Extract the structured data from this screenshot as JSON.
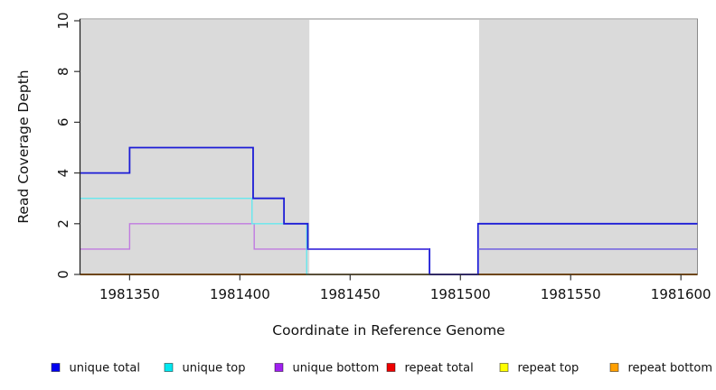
{
  "chart_data": {
    "type": "line",
    "subtype": "step-coverage",
    "title": "",
    "xlabel": "Coordinate in Reference Genome",
    "ylabel": "Read Coverage Depth",
    "xlim": [
      1981327.5,
      1981607.5
    ],
    "ylim": [
      0,
      10
    ],
    "x_ticks": [
      1981350,
      1981400,
      1981450,
      1981500,
      1981550,
      1981600
    ],
    "y_ticks": [
      0,
      2,
      4,
      6,
      8,
      10
    ],
    "grid": false,
    "background": "#FFFFFF",
    "shaded_regions": {
      "fill": "#DADADA",
      "note": "gray repeat-region bands behind the curves",
      "intervals": [
        [
          1981327.5,
          1981431.5
        ],
        [
          1981508.5,
          1981607.5
        ]
      ]
    },
    "series": [
      {
        "name": "repeat top",
        "color": "#FFFF00",
        "width": 1.4,
        "segments": [
          [
            [
              1981327.5,
              0
            ],
            [
              1981607.5,
              0
            ]
          ]
        ]
      },
      {
        "name": "repeat total",
        "color": "#E00000",
        "width": 1.4,
        "segments": [
          [
            [
              1981327.5,
              0
            ],
            [
              1981607.5,
              0
            ]
          ]
        ]
      },
      {
        "name": "repeat bottom",
        "color": "#FF9800",
        "width": 1.8,
        "segments": [
          [
            [
              1981327.5,
              0
            ],
            [
              1981431.5,
              0
            ]
          ],
          [
            [
              1981508.5,
              0
            ],
            [
              1981607.5,
              0
            ]
          ]
        ]
      },
      {
        "name": "unique bottom",
        "color": "#C07BE0",
        "width": 1.4,
        "segments": [
          [
            [
              1981327.5,
              1
            ],
            [
              1981350,
              2
            ],
            [
              1981406.5,
              1
            ],
            [
              1981486,
              0
            ],
            [
              1981508,
              1
            ],
            [
              1981607.5,
              1
            ]
          ]
        ]
      },
      {
        "name": "unique top",
        "color": "#66E8EE",
        "width": 1.4,
        "segments": [
          [
            [
              1981327.5,
              3
            ],
            [
              1981405.5,
              2
            ],
            [
              1981430.3,
              0
            ],
            [
              1981431.5,
              0
            ]
          ]
        ]
      },
      {
        "name": "unique total",
        "color": "#1C1CD6",
        "width": 1.8,
        "segments": [
          [
            [
              1981327.5,
              4
            ],
            [
              1981350,
              5
            ],
            [
              1981406,
              3
            ],
            [
              1981420,
              2
            ],
            [
              1981430.8,
              1
            ],
            [
              1981486,
              0
            ],
            [
              1981508,
              2
            ],
            [
              1981607.5,
              2
            ]
          ]
        ]
      }
    ],
    "overlap_segments": [
      {
        "y": 0,
        "x0": 1981431.5,
        "x1": 1981508,
        "color": "#9CD6A0",
        "width": 1.4
      },
      {
        "y": 1,
        "x0": 1981430.8,
        "x1": 1981486,
        "color": "#5A49E0",
        "width": 1.9
      },
      {
        "y": 0,
        "x0": 1981486,
        "x1": 1981508,
        "color": "#5A49E0",
        "width": 1.9
      },
      {
        "y": 1,
        "x0": 1981508,
        "x1": 1981607.5,
        "color": "#7A6FE0",
        "width": 1.6
      }
    ]
  },
  "legend": {
    "items": [
      {
        "label": "unique total",
        "color": "#0000F0"
      },
      {
        "label": "unique top",
        "color": "#00E8F0"
      },
      {
        "label": "unique bottom",
        "color": "#A020F0"
      },
      {
        "label": "repeat total",
        "color": "#EE0000"
      },
      {
        "label": "repeat top",
        "color": "#FFFF00"
      },
      {
        "label": "repeat bottom",
        "color": "#FFA000"
      }
    ]
  },
  "axis": {
    "line_color": "#1a1a1a",
    "box_color": "#8A8A8A",
    "tick_color": "#333333",
    "tick_label_color": "#111111"
  }
}
